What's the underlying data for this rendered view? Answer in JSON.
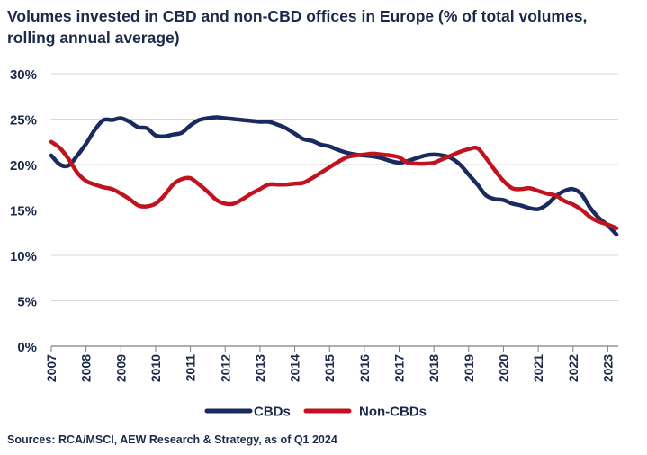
{
  "chart_data": {
    "type": "line",
    "title": "Volumes invested in CBD and non-CBD offices in Europe (% of total volumes, rolling annual average)",
    "xlabel": "",
    "ylabel": "",
    "source": "Sources: RCA/MSCI, AEW Research & Strategy, as of Q1 2024",
    "ylim": [
      0,
      30
    ],
    "xlim": [
      2007,
      2023.3
    ],
    "yticks": [
      0,
      5,
      10,
      15,
      20,
      25,
      30
    ],
    "ytick_labels": [
      "0%",
      "5%",
      "10%",
      "15%",
      "20%",
      "25%",
      "30%"
    ],
    "xticks": [
      2007,
      2008,
      2009,
      2010,
      2011,
      2012,
      2013,
      2014,
      2015,
      2016,
      2017,
      2018,
      2019,
      2020,
      2021,
      2022,
      2023
    ],
    "xtick_labels": [
      "2007",
      "2008",
      "2009",
      "2010",
      "2011",
      "2012",
      "2013",
      "2014",
      "2015",
      "2016",
      "2017",
      "2018",
      "2019",
      "2020",
      "2021",
      "2022",
      "2023"
    ],
    "grid": "horizontal",
    "legend": "bottom-center",
    "series": [
      {
        "name": "CBDs",
        "color": "#1b2a5e",
        "x": [
          2007.0,
          2007.25,
          2007.5,
          2007.75,
          2008.0,
          2008.25,
          2008.5,
          2008.75,
          2009.0,
          2009.25,
          2009.5,
          2009.75,
          2010.0,
          2010.25,
          2010.5,
          2010.75,
          2011.0,
          2011.25,
          2011.5,
          2011.75,
          2012.0,
          2012.25,
          2012.5,
          2012.75,
          2013.0,
          2013.25,
          2013.5,
          2013.75,
          2014.0,
          2014.25,
          2014.5,
          2014.75,
          2015.0,
          2015.25,
          2015.5,
          2015.75,
          2016.0,
          2016.25,
          2016.5,
          2016.75,
          2017.0,
          2017.25,
          2017.5,
          2017.75,
          2018.0,
          2018.25,
          2018.5,
          2018.75,
          2019.0,
          2019.25,
          2019.5,
          2019.75,
          2020.0,
          2020.25,
          2020.5,
          2020.75,
          2021.0,
          2021.25,
          2021.5,
          2021.75,
          2022.0,
          2022.25,
          2022.5,
          2022.75,
          2023.0,
          2023.25
        ],
        "values": [
          21.0,
          20.0,
          19.9,
          21.0,
          22.3,
          23.8,
          24.9,
          24.9,
          25.1,
          24.7,
          24.1,
          24.0,
          23.2,
          23.1,
          23.3,
          23.5,
          24.3,
          24.9,
          25.1,
          25.2,
          25.1,
          25.0,
          24.9,
          24.8,
          24.7,
          24.7,
          24.4,
          24.0,
          23.4,
          22.8,
          22.6,
          22.2,
          22.0,
          21.6,
          21.3,
          21.1,
          21.0,
          20.9,
          20.7,
          20.4,
          20.2,
          20.4,
          20.7,
          21.0,
          21.1,
          21.0,
          20.7,
          20.0,
          18.9,
          17.8,
          16.6,
          16.2,
          16.1,
          15.7,
          15.5,
          15.2,
          15.1,
          15.6,
          16.5,
          17.1,
          17.3,
          16.7,
          15.2,
          14.1,
          13.3,
          12.3
        ]
      },
      {
        "name": "Non-CBDs",
        "color": "#c1121f",
        "x": [
          2007.0,
          2007.25,
          2007.5,
          2007.75,
          2008.0,
          2008.25,
          2008.5,
          2008.75,
          2009.0,
          2009.25,
          2009.5,
          2009.75,
          2010.0,
          2010.25,
          2010.5,
          2010.75,
          2011.0,
          2011.25,
          2011.5,
          2011.75,
          2012.0,
          2012.25,
          2012.5,
          2012.75,
          2013.0,
          2013.25,
          2013.5,
          2013.75,
          2014.0,
          2014.25,
          2014.5,
          2014.75,
          2015.0,
          2015.25,
          2015.5,
          2015.75,
          2016.0,
          2016.25,
          2016.5,
          2016.75,
          2017.0,
          2017.25,
          2017.5,
          2017.75,
          2018.0,
          2018.25,
          2018.5,
          2018.75,
          2019.0,
          2019.25,
          2019.5,
          2019.75,
          2020.0,
          2020.25,
          2020.5,
          2020.75,
          2021.0,
          2021.25,
          2021.5,
          2021.75,
          2022.0,
          2022.25,
          2022.5,
          2022.75,
          2023.0,
          2023.25
        ],
        "values": [
          22.5,
          21.8,
          20.6,
          19.1,
          18.2,
          17.8,
          17.5,
          17.3,
          16.8,
          16.2,
          15.5,
          15.4,
          15.7,
          16.6,
          17.8,
          18.4,
          18.5,
          17.8,
          17.0,
          16.1,
          15.7,
          15.7,
          16.2,
          16.8,
          17.3,
          17.8,
          17.8,
          17.8,
          17.9,
          18.0,
          18.5,
          19.1,
          19.7,
          20.3,
          20.8,
          21.0,
          21.1,
          21.2,
          21.1,
          21.0,
          20.8,
          20.2,
          20.1,
          20.1,
          20.2,
          20.6,
          21.0,
          21.4,
          21.7,
          21.8,
          20.7,
          19.4,
          18.2,
          17.4,
          17.3,
          17.4,
          17.1,
          16.8,
          16.6,
          16.0,
          15.6,
          15.0,
          14.2,
          13.7,
          13.4,
          13.0
        ]
      }
    ]
  }
}
